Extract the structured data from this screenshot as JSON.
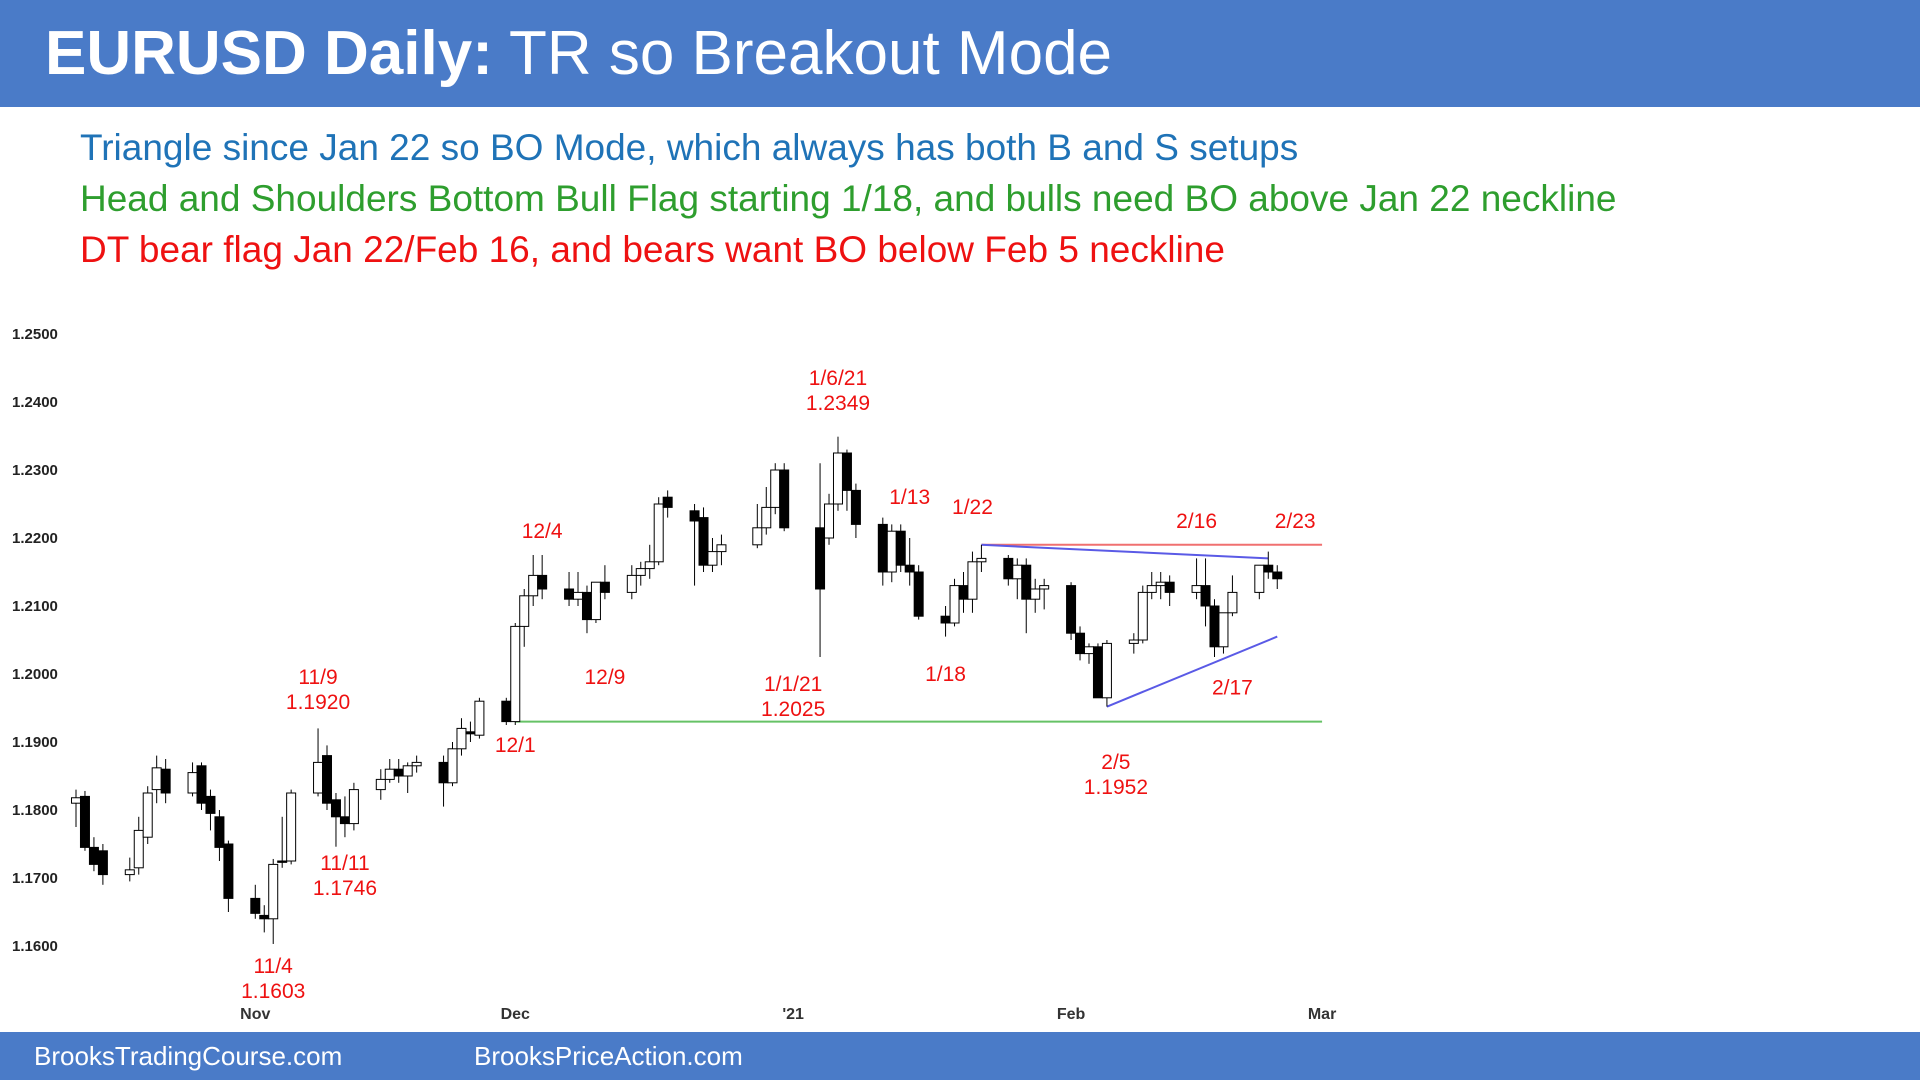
{
  "header": {
    "title_bold": "EURUSD Daily:",
    "title_rest": " TR so Breakout Mode"
  },
  "notes": [
    {
      "text": "Triangle since Jan 22 so BO Mode, which always has both B and S setups",
      "color": "#1f73b7"
    },
    {
      "text": "Head and Shoulders Bottom Bull Flag starting 1/18, and bulls need BO above Jan 22 neckline",
      "color": "#2e9e2e"
    },
    {
      "text": "DT bear flag Jan 22/Feb 16, and bears want BO below Feb 5 neckline",
      "color": "#ee1111"
    }
  ],
  "footer": {
    "left": "BrooksTradingCourse.com",
    "right": "BrooksPriceAction.com"
  },
  "colors": {
    "header_bg": "#4a7bc8",
    "annotation": "#ee1111",
    "support_line": "#66c266",
    "resistance_line": "#f07070",
    "trend_line": "#5a5ae6"
  },
  "chart_data": {
    "type": "candlestick",
    "title": "",
    "ylim": [
      1.155,
      1.255
    ],
    "y_ticks": [
      "1.2500",
      "1.2400",
      "1.2300",
      "1.2200",
      "1.2100",
      "1.2000",
      "1.1900",
      "1.1800",
      "1.1700",
      "1.1600"
    ],
    "x_ticks": [
      {
        "label": "Nov",
        "x": "2020-11-02"
      },
      {
        "label": "Dec",
        "x": "2020-12-01"
      },
      {
        "label": "'21",
        "x": "2021-01-01"
      },
      {
        "label": "Feb",
        "x": "2021-02-01"
      },
      {
        "label": "Mar",
        "x": "2021-03-01"
      }
    ],
    "x_range": [
      "2020-10-13",
      "2021-03-03"
    ],
    "candles": [
      [
        "2020-10-13",
        1.181,
        1.183,
        1.1775,
        1.1818
      ],
      [
        "2020-10-14",
        1.182,
        1.1828,
        1.174,
        1.1745
      ],
      [
        "2020-10-15",
        1.1745,
        1.176,
        1.171,
        1.172
      ],
      [
        "2020-10-16",
        1.174,
        1.175,
        1.169,
        1.1705
      ],
      [
        "2020-10-19",
        1.1705,
        1.173,
        1.1695,
        1.1712
      ],
      [
        "2020-10-20",
        1.1715,
        1.179,
        1.1705,
        1.177
      ],
      [
        "2020-10-21",
        1.176,
        1.1835,
        1.175,
        1.1825
      ],
      [
        "2020-10-22",
        1.183,
        1.188,
        1.181,
        1.1862
      ],
      [
        "2020-10-23",
        1.186,
        1.1875,
        1.181,
        1.1825
      ],
      [
        "2020-10-26",
        1.1825,
        1.187,
        1.182,
        1.1855
      ],
      [
        "2020-10-27",
        1.1865,
        1.187,
        1.18,
        1.181
      ],
      [
        "2020-10-28",
        1.182,
        1.183,
        1.177,
        1.1795
      ],
      [
        "2020-10-29",
        1.179,
        1.18,
        1.1725,
        1.1745
      ],
      [
        "2020-10-30",
        1.175,
        1.1755,
        1.165,
        1.167
      ],
      [
        "2020-11-02",
        1.167,
        1.169,
        1.164,
        1.1648
      ],
      [
        "2020-11-03",
        1.1645,
        1.166,
        1.162,
        1.164
      ],
      [
        "2020-11-04",
        1.164,
        1.1728,
        1.1603,
        1.172
      ],
      [
        "2020-11-05",
        1.1725,
        1.179,
        1.1715,
        1.1723
      ],
      [
        "2020-11-06",
        1.1725,
        1.183,
        1.172,
        1.1825
      ],
      [
        "2020-11-09",
        1.1825,
        1.192,
        1.182,
        1.187
      ],
      [
        "2020-11-10",
        1.188,
        1.1895,
        1.18,
        1.181
      ],
      [
        "2020-11-11",
        1.1815,
        1.1825,
        1.1746,
        1.179
      ],
      [
        "2020-11-12",
        1.179,
        1.182,
        1.176,
        1.178
      ],
      [
        "2020-11-13",
        1.178,
        1.184,
        1.177,
        1.183
      ],
      [
        "2020-11-16",
        1.183,
        1.186,
        1.1815,
        1.1845
      ],
      [
        "2020-11-17",
        1.1845,
        1.1875,
        1.184,
        1.186
      ],
      [
        "2020-11-18",
        1.186,
        1.1875,
        1.184,
        1.185
      ],
      [
        "2020-11-19",
        1.185,
        1.187,
        1.1825,
        1.1865
      ],
      [
        "2020-11-20",
        1.1865,
        1.188,
        1.1855,
        1.187
      ],
      [
        "2020-11-23",
        1.187,
        1.188,
        1.1805,
        1.184
      ],
      [
        "2020-11-24",
        1.184,
        1.19,
        1.1835,
        1.189
      ],
      [
        "2020-11-25",
        1.189,
        1.1935,
        1.188,
        1.192
      ],
      [
        "2020-11-26",
        1.1915,
        1.193,
        1.19,
        1.1912
      ],
      [
        "2020-11-27",
        1.191,
        1.1965,
        1.1905,
        1.196
      ],
      [
        "2020-11-30",
        1.196,
        1.1965,
        1.1925,
        1.193
      ],
      [
        "2020-12-01",
        1.193,
        1.2075,
        1.1925,
        1.207
      ],
      [
        "2020-12-02",
        1.207,
        1.2125,
        1.204,
        1.2115
      ],
      [
        "2020-12-03",
        1.2115,
        1.2175,
        1.21,
        1.2145
      ],
      [
        "2020-12-04",
        1.2145,
        1.2175,
        1.211,
        1.2125
      ],
      [
        "2020-12-07",
        1.2125,
        1.215,
        1.21,
        1.211
      ],
      [
        "2020-12-08",
        1.211,
        1.215,
        1.21,
        1.212
      ],
      [
        "2020-12-09",
        1.212,
        1.213,
        1.206,
        1.208
      ],
      [
        "2020-12-10",
        1.208,
        1.2135,
        1.2075,
        1.2135
      ],
      [
        "2020-12-11",
        1.2135,
        1.216,
        1.211,
        1.212
      ],
      [
        "2020-12-14",
        1.212,
        1.216,
        1.211,
        1.2145
      ],
      [
        "2020-12-15",
        1.2145,
        1.2165,
        1.213,
        1.2155
      ],
      [
        "2020-12-16",
        1.2155,
        1.219,
        1.214,
        1.2165
      ],
      [
        "2020-12-17",
        1.2165,
        1.226,
        1.216,
        1.225
      ],
      [
        "2020-12-18",
        1.226,
        1.227,
        1.223,
        1.2245
      ],
      [
        "2020-12-21",
        1.224,
        1.225,
        1.213,
        1.2225
      ],
      [
        "2020-12-22",
        1.223,
        1.2245,
        1.215,
        1.216
      ],
      [
        "2020-12-23",
        1.216,
        1.22,
        1.215,
        1.218
      ],
      [
        "2020-12-24",
        1.218,
        1.2205,
        1.216,
        1.219
      ],
      [
        "2020-12-28",
        1.219,
        1.225,
        1.2185,
        1.2215
      ],
      [
        "2020-12-29",
        1.2215,
        1.2275,
        1.2205,
        1.2245
      ],
      [
        "2020-12-30",
        1.2245,
        1.231,
        1.2235,
        1.23
      ],
      [
        "2020-12-31",
        1.23,
        1.231,
        1.221,
        1.2215
      ],
      [
        "2021-01-04",
        1.2215,
        1.231,
        1.2025,
        1.2125
      ],
      [
        "2021-01-05",
        1.22,
        1.2265,
        1.219,
        1.225
      ],
      [
        "2021-01-06",
        1.225,
        1.2349,
        1.224,
        1.2325
      ],
      [
        "2021-01-07",
        1.2325,
        1.233,
        1.224,
        1.227
      ],
      [
        "2021-01-08",
        1.227,
        1.228,
        1.22,
        1.222
      ],
      [
        "2021-01-11",
        1.222,
        1.223,
        1.213,
        1.215
      ],
      [
        "2021-01-12",
        1.215,
        1.222,
        1.2135,
        1.221
      ],
      [
        "2021-01-13",
        1.221,
        1.222,
        1.215,
        1.216
      ],
      [
        "2021-01-14",
        1.216,
        1.22,
        1.213,
        1.215
      ],
      [
        "2021-01-15",
        1.215,
        1.216,
        1.208,
        1.2085
      ],
      [
        "2021-01-18",
        1.2085,
        1.21,
        1.2055,
        1.2075
      ],
      [
        "2021-01-19",
        1.2075,
        1.214,
        1.207,
        1.213
      ],
      [
        "2021-01-20",
        1.213,
        1.215,
        1.209,
        1.211
      ],
      [
        "2021-01-21",
        1.211,
        1.218,
        1.209,
        1.2165
      ],
      [
        "2021-01-22",
        1.2165,
        1.219,
        1.215,
        1.217
      ],
      [
        "2021-01-25",
        1.217,
        1.2175,
        1.213,
        1.214
      ],
      [
        "2021-01-26",
        1.214,
        1.217,
        1.211,
        1.216
      ],
      [
        "2021-01-27",
        1.216,
        1.217,
        1.206,
        1.211
      ],
      [
        "2021-01-28",
        1.211,
        1.214,
        1.209,
        1.2125
      ],
      [
        "2021-01-29",
        1.2125,
        1.214,
        1.2095,
        1.213
      ],
      [
        "2021-02-01",
        1.213,
        1.2135,
        1.205,
        1.206
      ],
      [
        "2021-02-02",
        1.206,
        1.207,
        1.202,
        1.203
      ],
      [
        "2021-02-03",
        1.203,
        1.2045,
        1.2015,
        1.204
      ],
      [
        "2021-02-04",
        1.204,
        1.2045,
        1.197,
        1.1965
      ],
      [
        "2021-02-05",
        1.1965,
        1.205,
        1.1952,
        1.2045
      ],
      [
        "2021-02-08",
        1.2045,
        1.206,
        1.203,
        1.205
      ],
      [
        "2021-02-09",
        1.205,
        1.213,
        1.2045,
        1.212
      ],
      [
        "2021-02-10",
        1.212,
        1.215,
        1.211,
        1.213
      ],
      [
        "2021-02-11",
        1.213,
        1.215,
        1.211,
        1.2135
      ],
      [
        "2021-02-12",
        1.2135,
        1.2145,
        1.21,
        1.212
      ],
      [
        "2021-02-15",
        1.212,
        1.217,
        1.211,
        1.213
      ],
      [
        "2021-02-16",
        1.213,
        1.217,
        1.207,
        1.21
      ],
      [
        "2021-02-17",
        1.21,
        1.211,
        1.2025,
        1.204
      ],
      [
        "2021-02-18",
        1.204,
        1.209,
        1.203,
        1.209
      ],
      [
        "2021-02-19",
        1.209,
        1.2145,
        1.2085,
        1.212
      ],
      [
        "2021-02-22",
        1.212,
        1.216,
        1.211,
        1.216
      ],
      [
        "2021-02-23",
        1.216,
        1.218,
        1.214,
        1.215
      ],
      [
        "2021-02-24",
        1.215,
        1.216,
        1.2125,
        1.214
      ]
    ],
    "candle_fields": [
      "date",
      "open",
      "high",
      "low",
      "close"
    ],
    "lines": [
      {
        "name": "neckline-support",
        "from": [
          "2020-12-01",
          1.193
        ],
        "to": [
          "2021-03-01",
          1.193
        ],
        "color": "#66c266"
      },
      {
        "name": "neckline-resistance",
        "from": [
          "2021-01-22",
          1.219
        ],
        "to": [
          "2021-03-01",
          1.219
        ],
        "color": "#f07070"
      },
      {
        "name": "triangle-top",
        "from": [
          "2021-01-22",
          1.219
        ],
        "to": [
          "2021-02-23",
          1.217
        ],
        "color": "#5a5ae6"
      },
      {
        "name": "triangle-bottom",
        "from": [
          "2021-02-05",
          1.1952
        ],
        "to": [
          "2021-02-24",
          1.2055
        ],
        "color": "#5a5ae6"
      }
    ],
    "annotations": [
      {
        "lines": [
          "11/4",
          "1.1603"
        ],
        "x": "2020-11-04",
        "y": 1.156,
        "anchor": "middle"
      },
      {
        "lines": [
          "11/9",
          "1.1920"
        ],
        "x": "2020-11-09",
        "y": 1.1985,
        "anchor": "middle"
      },
      {
        "lines": [
          "11/11",
          "1.1746"
        ],
        "x": "2020-11-12",
        "y": 1.1712,
        "anchor": "middle"
      },
      {
        "lines": [
          "12/1"
        ],
        "x": "2020-12-01",
        "y": 1.1885,
        "anchor": "middle"
      },
      {
        "lines": [
          "12/4"
        ],
        "x": "2020-12-04",
        "y": 1.22,
        "anchor": "middle"
      },
      {
        "lines": [
          "12/9"
        ],
        "x": "2020-12-11",
        "y": 1.1985,
        "anchor": "middle"
      },
      {
        "lines": [
          "1/1/21",
          "1.2025"
        ],
        "x": "2021-01-01",
        "y": 1.1975,
        "anchor": "middle"
      },
      {
        "lines": [
          "1/6/21",
          "1.2349"
        ],
        "x": "2021-01-06",
        "y": 1.2425,
        "anchor": "middle"
      },
      {
        "lines": [
          "1/13"
        ],
        "x": "2021-01-14",
        "y": 1.225,
        "anchor": "middle"
      },
      {
        "lines": [
          "1/18"
        ],
        "x": "2021-01-18",
        "y": 1.199,
        "anchor": "middle"
      },
      {
        "lines": [
          "1/22"
        ],
        "x": "2021-01-21",
        "y": 1.2235,
        "anchor": "middle"
      },
      {
        "lines": [
          "2/5",
          "1.1952"
        ],
        "x": "2021-02-06",
        "y": 1.186,
        "anchor": "middle"
      },
      {
        "lines": [
          "2/16"
        ],
        "x": "2021-02-15",
        "y": 1.2215,
        "anchor": "middle"
      },
      {
        "lines": [
          "2/17"
        ],
        "x": "2021-02-19",
        "y": 1.197,
        "anchor": "middle"
      },
      {
        "lines": [
          "2/23"
        ],
        "x": "2021-02-26",
        "y": 1.2215,
        "anchor": "middle"
      }
    ]
  }
}
